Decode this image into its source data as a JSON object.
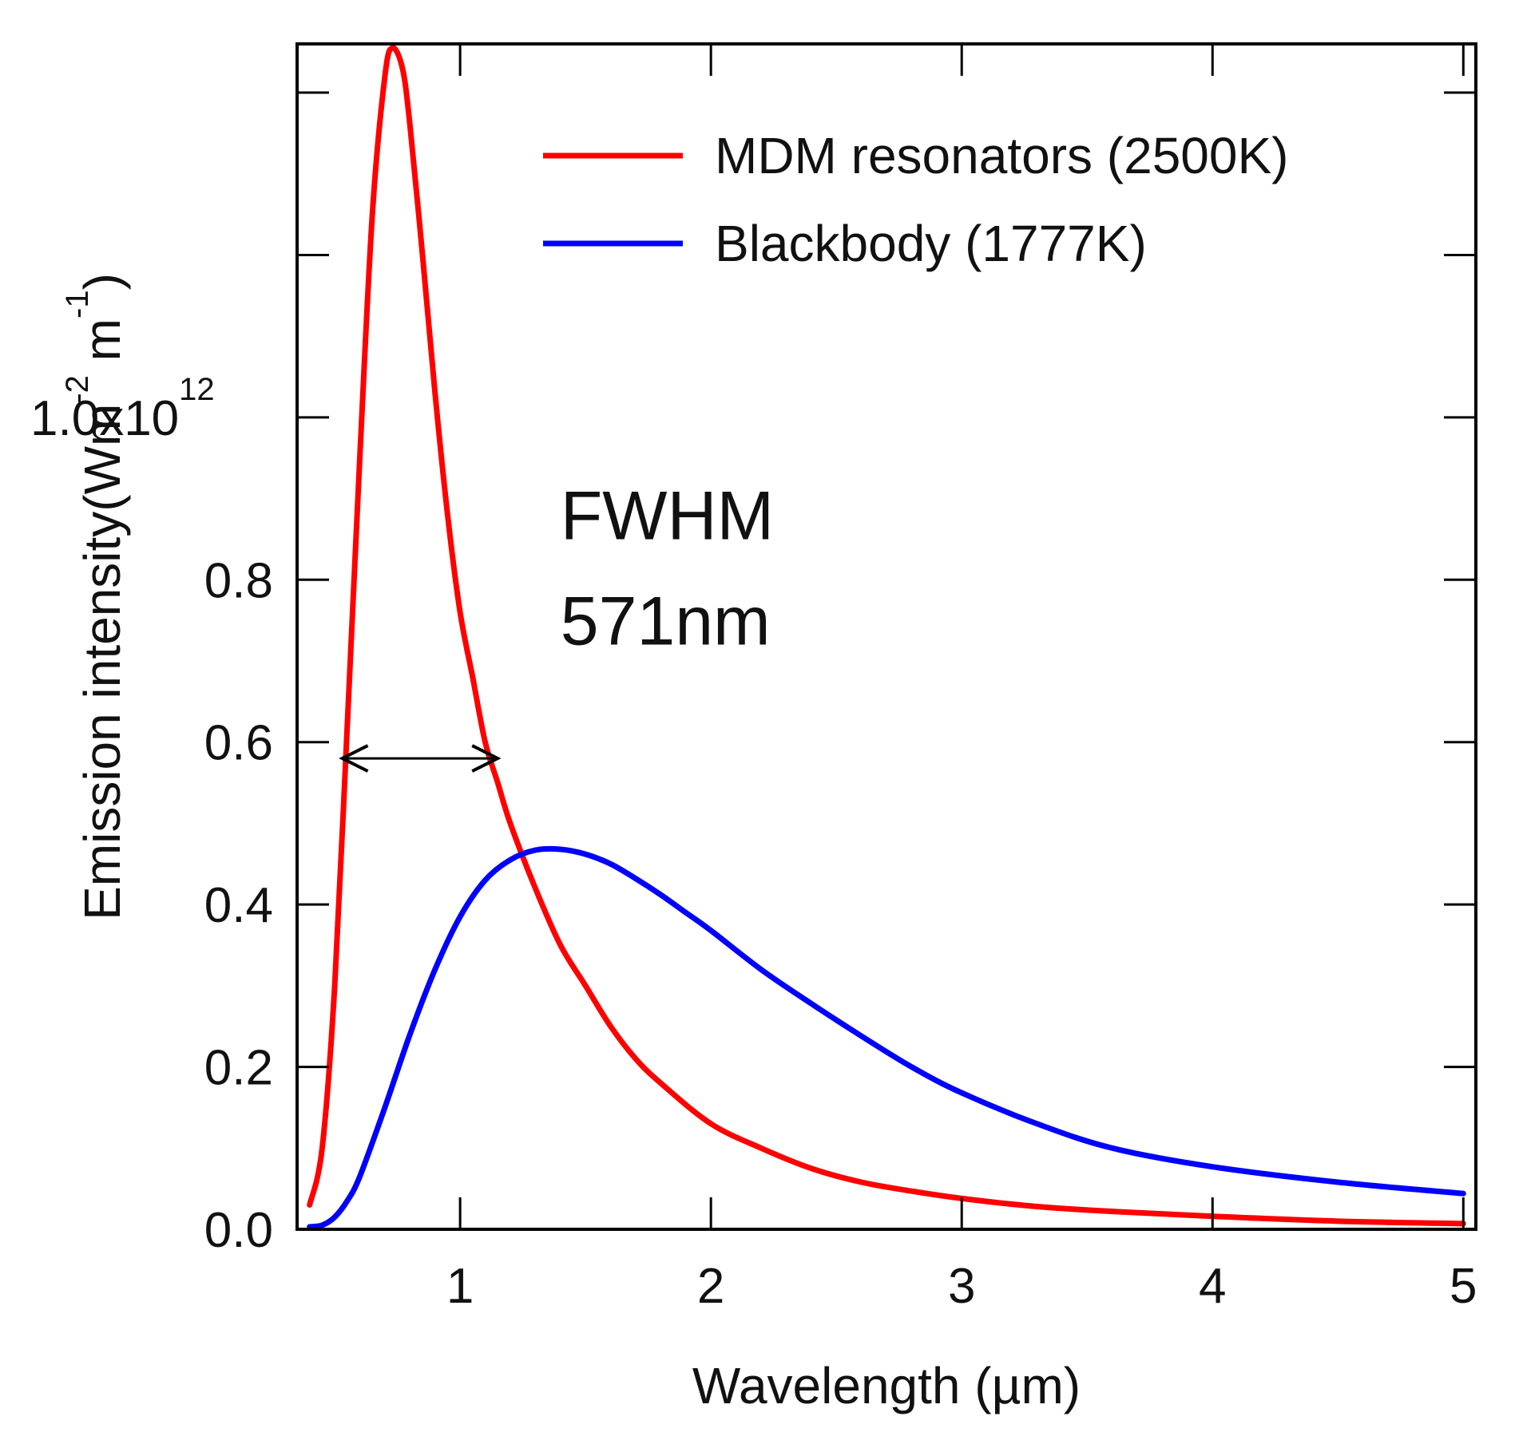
{
  "chart_data": {
    "type": "line",
    "title": "",
    "xlabel": "Wavelength (µm)",
    "ylabel": "Emission intensity(Wm-2 m-1)",
    "ylabel_parts": {
      "main": "Emission intensity(Wm",
      "exp1": "-2",
      "mid": " m",
      "exp2": "-1",
      "close": ")"
    },
    "xlim": [
      0.35,
      5.05
    ],
    "ylim": [
      0.0,
      1.46
    ],
    "y_scale_label": {
      "base": "1.0x10",
      "exponent": "12"
    },
    "x_ticks": [
      1,
      2,
      3,
      4,
      5
    ],
    "x_tick_labels": [
      "1",
      "2",
      "3",
      "4",
      "5"
    ],
    "y_ticks": [
      0.0,
      0.2,
      0.4,
      0.6,
      0.8,
      1.0,
      1.2,
      1.4
    ],
    "y_tick_labels": [
      "0.0",
      "0.2",
      "0.4",
      "0.6",
      "0.8",
      "",
      "",
      ""
    ],
    "legend": {
      "placement": "top-right"
    },
    "series": [
      {
        "name": "MDM resonators (2500K)",
        "color": "#ff0000",
        "x": [
          0.4,
          0.45,
          0.5,
          0.55,
          0.6,
          0.65,
          0.7,
          0.73,
          0.77,
          0.8,
          0.85,
          0.9,
          0.95,
          1.0,
          1.05,
          1.1,
          1.15,
          1.2,
          1.3,
          1.4,
          1.5,
          1.6,
          1.7,
          1.8,
          2.0,
          2.2,
          2.4,
          2.6,
          2.8,
          3.0,
          3.3,
          3.6,
          4.0,
          4.5,
          5.0
        ],
        "y": [
          0.03,
          0.1,
          0.3,
          0.62,
          0.95,
          1.25,
          1.42,
          1.455,
          1.43,
          1.36,
          1.2,
          1.03,
          0.88,
          0.76,
          0.68,
          0.6,
          0.55,
          0.5,
          0.42,
          0.35,
          0.3,
          0.25,
          0.21,
          0.18,
          0.13,
          0.1,
          0.075,
          0.058,
          0.047,
          0.038,
          0.028,
          0.022,
          0.016,
          0.01,
          0.007
        ]
      },
      {
        "name": "Blackbody (1777K)",
        "color": "#0000ff",
        "x": [
          0.4,
          0.45,
          0.5,
          0.55,
          0.6,
          0.7,
          0.8,
          0.9,
          1.0,
          1.1,
          1.2,
          1.3,
          1.4,
          1.5,
          1.6,
          1.7,
          1.8,
          1.9,
          2.0,
          2.2,
          2.4,
          2.6,
          2.8,
          3.0,
          3.3,
          3.6,
          4.0,
          4.5,
          5.0
        ],
        "y": [
          0.003,
          0.005,
          0.015,
          0.035,
          0.065,
          0.15,
          0.24,
          0.32,
          0.385,
          0.43,
          0.455,
          0.467,
          0.468,
          0.462,
          0.45,
          0.432,
          0.412,
          0.39,
          0.368,
          0.32,
          0.278,
          0.238,
          0.2,
          0.168,
          0.13,
          0.1,
          0.077,
          0.058,
          0.044
        ]
      }
    ],
    "annotations": [
      {
        "text": "FWHM",
        "x": 1.4,
        "y": 0.85
      },
      {
        "text": "571nm",
        "x": 1.4,
        "y": 0.72
      }
    ],
    "fwhm_arrow": {
      "x_start": 0.53,
      "x_end": 1.15,
      "y": 0.58
    }
  }
}
